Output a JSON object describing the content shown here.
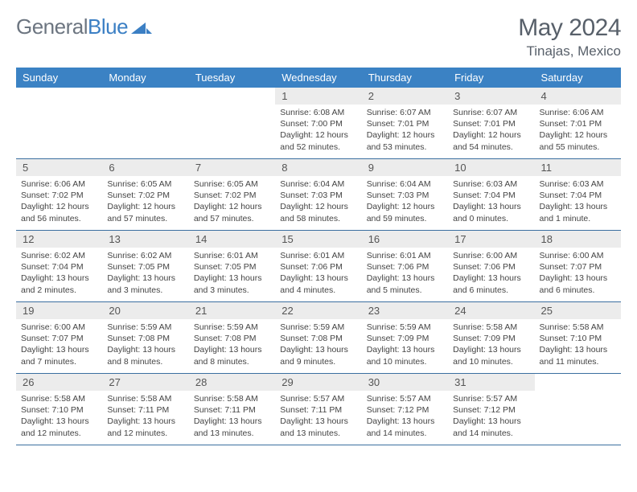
{
  "brand": {
    "part1": "General",
    "part2": "Blue"
  },
  "title": "May 2024",
  "location": "Tinajas, Mexico",
  "colors": {
    "header_bg": "#3b82c4",
    "header_text": "#ffffff",
    "daynum_bg": "#ececec",
    "divider": "#3b6fa0",
    "title_color": "#58606a",
    "logo_gray": "#6c7580",
    "logo_blue": "#3b7fc4"
  },
  "dow": [
    "Sunday",
    "Monday",
    "Tuesday",
    "Wednesday",
    "Thursday",
    "Friday",
    "Saturday"
  ],
  "weeks": [
    [
      {
        "n": "",
        "sr": "",
        "ss": "",
        "dl": ""
      },
      {
        "n": "",
        "sr": "",
        "ss": "",
        "dl": ""
      },
      {
        "n": "",
        "sr": "",
        "ss": "",
        "dl": ""
      },
      {
        "n": "1",
        "sr": "6:08 AM",
        "ss": "7:00 PM",
        "dl": "12 hours and 52 minutes."
      },
      {
        "n": "2",
        "sr": "6:07 AM",
        "ss": "7:01 PM",
        "dl": "12 hours and 53 minutes."
      },
      {
        "n": "3",
        "sr": "6:07 AM",
        "ss": "7:01 PM",
        "dl": "12 hours and 54 minutes."
      },
      {
        "n": "4",
        "sr": "6:06 AM",
        "ss": "7:01 PM",
        "dl": "12 hours and 55 minutes."
      }
    ],
    [
      {
        "n": "5",
        "sr": "6:06 AM",
        "ss": "7:02 PM",
        "dl": "12 hours and 56 minutes."
      },
      {
        "n": "6",
        "sr": "6:05 AM",
        "ss": "7:02 PM",
        "dl": "12 hours and 57 minutes."
      },
      {
        "n": "7",
        "sr": "6:05 AM",
        "ss": "7:02 PM",
        "dl": "12 hours and 57 minutes."
      },
      {
        "n": "8",
        "sr": "6:04 AM",
        "ss": "7:03 PM",
        "dl": "12 hours and 58 minutes."
      },
      {
        "n": "9",
        "sr": "6:04 AM",
        "ss": "7:03 PM",
        "dl": "12 hours and 59 minutes."
      },
      {
        "n": "10",
        "sr": "6:03 AM",
        "ss": "7:04 PM",
        "dl": "13 hours and 0 minutes."
      },
      {
        "n": "11",
        "sr": "6:03 AM",
        "ss": "7:04 PM",
        "dl": "13 hours and 1 minute."
      }
    ],
    [
      {
        "n": "12",
        "sr": "6:02 AM",
        "ss": "7:04 PM",
        "dl": "13 hours and 2 minutes."
      },
      {
        "n": "13",
        "sr": "6:02 AM",
        "ss": "7:05 PM",
        "dl": "13 hours and 3 minutes."
      },
      {
        "n": "14",
        "sr": "6:01 AM",
        "ss": "7:05 PM",
        "dl": "13 hours and 3 minutes."
      },
      {
        "n": "15",
        "sr": "6:01 AM",
        "ss": "7:06 PM",
        "dl": "13 hours and 4 minutes."
      },
      {
        "n": "16",
        "sr": "6:01 AM",
        "ss": "7:06 PM",
        "dl": "13 hours and 5 minutes."
      },
      {
        "n": "17",
        "sr": "6:00 AM",
        "ss": "7:06 PM",
        "dl": "13 hours and 6 minutes."
      },
      {
        "n": "18",
        "sr": "6:00 AM",
        "ss": "7:07 PM",
        "dl": "13 hours and 6 minutes."
      }
    ],
    [
      {
        "n": "19",
        "sr": "6:00 AM",
        "ss": "7:07 PM",
        "dl": "13 hours and 7 minutes."
      },
      {
        "n": "20",
        "sr": "5:59 AM",
        "ss": "7:08 PM",
        "dl": "13 hours and 8 minutes."
      },
      {
        "n": "21",
        "sr": "5:59 AM",
        "ss": "7:08 PM",
        "dl": "13 hours and 8 minutes."
      },
      {
        "n": "22",
        "sr": "5:59 AM",
        "ss": "7:08 PM",
        "dl": "13 hours and 9 minutes."
      },
      {
        "n": "23",
        "sr": "5:59 AM",
        "ss": "7:09 PM",
        "dl": "13 hours and 10 minutes."
      },
      {
        "n": "24",
        "sr": "5:58 AM",
        "ss": "7:09 PM",
        "dl": "13 hours and 10 minutes."
      },
      {
        "n": "25",
        "sr": "5:58 AM",
        "ss": "7:10 PM",
        "dl": "13 hours and 11 minutes."
      }
    ],
    [
      {
        "n": "26",
        "sr": "5:58 AM",
        "ss": "7:10 PM",
        "dl": "13 hours and 12 minutes."
      },
      {
        "n": "27",
        "sr": "5:58 AM",
        "ss": "7:11 PM",
        "dl": "13 hours and 12 minutes."
      },
      {
        "n": "28",
        "sr": "5:58 AM",
        "ss": "7:11 PM",
        "dl": "13 hours and 13 minutes."
      },
      {
        "n": "29",
        "sr": "5:57 AM",
        "ss": "7:11 PM",
        "dl": "13 hours and 13 minutes."
      },
      {
        "n": "30",
        "sr": "5:57 AM",
        "ss": "7:12 PM",
        "dl": "13 hours and 14 minutes."
      },
      {
        "n": "31",
        "sr": "5:57 AM",
        "ss": "7:12 PM",
        "dl": "13 hours and 14 minutes."
      },
      {
        "n": "",
        "sr": "",
        "ss": "",
        "dl": ""
      }
    ]
  ],
  "labels": {
    "sunrise": "Sunrise:",
    "sunset": "Sunset:",
    "daylight": "Daylight:"
  }
}
